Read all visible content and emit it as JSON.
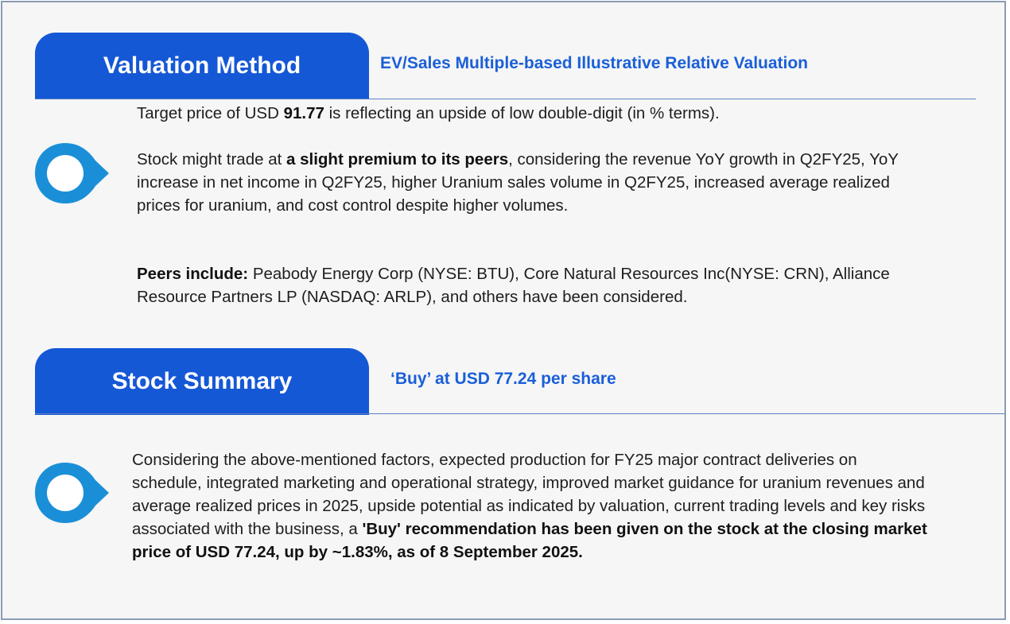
{
  "valuation": {
    "title": "Valuation Method",
    "subtitle": "EV/Sales Multiple-based Illustrative Relative Valuation",
    "target_line": {
      "pre": "Target price of USD ",
      "price": "91.77",
      "post": " is reflecting an upside of low double-digit (in % terms)."
    },
    "premium_paragraph": {
      "pre": "Stock might trade at ",
      "bold": "a slight premium to its peers",
      "post": ", considering the revenue YoY growth in Q2FY25, YoY increase in net income in Q2FY25, higher Uranium sales volume in Q2FY25, increased average realized prices for uranium, and cost control despite higher volumes."
    },
    "peers_paragraph": {
      "label": "Peers include:",
      "text": " Peabody Energy Corp (NYSE: BTU), Core Natural Resources Inc(NYSE: CRN), Alliance Resource Partners LP (NASDAQ: ARLP), and others have been considered."
    }
  },
  "summary": {
    "title": "Stock Summary",
    "subtitle": "‘Buy’ at USD 77.24 per share",
    "paragraph": {
      "normal": "Considering the above-mentioned factors, expected production for FY25 major contract deliveries on schedule, integrated marketing and operational strategy, improved market guidance for uranium revenues and average realized prices in 2025, upside potential as indicated by valuation, current trading levels and key risks associated with the business, a ",
      "bold": "'Buy' recommendation has been given on the stock at the closing market price of USD 77.24, up by ~1.83%, as of 8 September 2025."
    }
  },
  "colors": {
    "accent": "#1558d6",
    "bullet": "#1a8fd8",
    "text": "#1e1e1e"
  },
  "icons": {
    "bullet": "location-pin-bullet-icon"
  }
}
